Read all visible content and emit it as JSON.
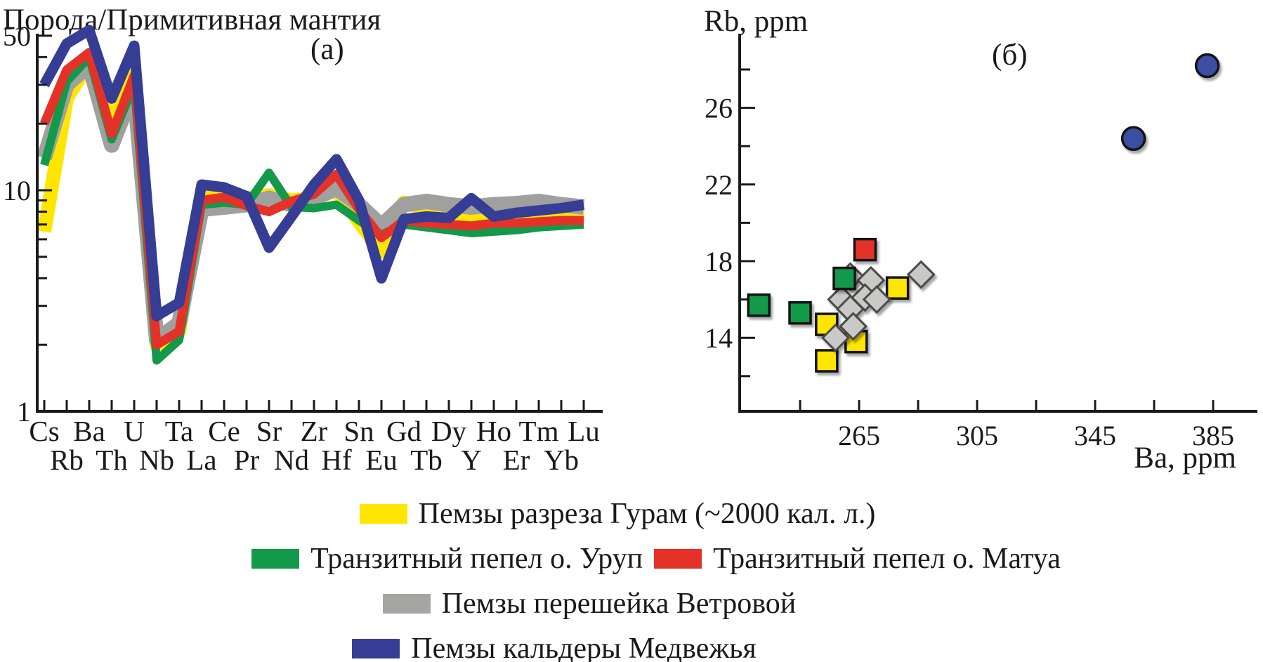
{
  "panel_a": {
    "label": "(а)",
    "y_axis_title": "Порода/Примитивная мантия"
  },
  "panel_b": {
    "label": "(б)",
    "ylabel": "Rb, ppm",
    "xlabel": "Ba, ppm"
  },
  "legend": {
    "rows": [
      [
        {
          "swatch_color": "#FFE500",
          "swatch_name": "yellow-swatch",
          "label": "Пемзы разреза Гурам (~2000 кал. л.)"
        }
      ],
      [
        {
          "swatch_color": "#12994A",
          "swatch_name": "green-swatch",
          "label": "Транзитный пепел о. Уруп"
        },
        {
          "swatch_color": "#E53228",
          "swatch_name": "red-swatch",
          "label": "Транзитный пепел о. Матуа"
        }
      ],
      [
        {
          "swatch_color": "#A5A5A4",
          "swatch_name": "gray-swatch",
          "label": "Пемзы перешейка Ветровой"
        }
      ],
      [
        {
          "swatch_color": "#353D94",
          "swatch_name": "blue-swatch",
          "label": "Пемзы кальдеры Медвежья"
        }
      ]
    ]
  },
  "chart_data": [
    {
      "type": "line",
      "panel": "(а)",
      "title": "Порода/Примитивная мантия",
      "y_scale": "log",
      "ylim": [
        1,
        55
      ],
      "y_ticks_labeled": [
        50,
        10,
        1
      ],
      "y_ticks_minor": [
        2,
        3,
        4,
        5,
        6,
        7,
        8,
        9,
        20,
        30,
        40
      ],
      "grid": false,
      "x_categories": [
        "Cs",
        "Rb",
        "Ba",
        "Th",
        "U",
        "Nb",
        "Ta",
        "La",
        "Ce",
        "Pr",
        "Sr",
        "Nd",
        "Zr",
        "Hf",
        "Sn",
        "Eu",
        "Gd",
        "Tb",
        "Dy",
        "Y",
        "Ho",
        "Er",
        "Tm",
        "Yb",
        "Lu"
      ],
      "series": [
        {
          "name": "Пемзы разреза Гурам (~2000 кал. л.)",
          "color": "#FFE500",
          "stroke_width": 20,
          "values": [
            6.5,
            26,
            38,
            20,
            34,
            2.0,
            2.3,
            9.3,
            9.5,
            9.2,
            9.5,
            9.0,
            9.2,
            10.0,
            7.2,
            5.3,
            8.8,
            8.2,
            7.9,
            7.7,
            7.9,
            7.7,
            7.9,
            7.7,
            7.5
          ]
        },
        {
          "name": "Пемзы перешейка Ветровой",
          "color": "#A0A09F",
          "stroke_width": 22,
          "values": [
            14,
            30,
            37,
            16,
            29,
            2.1,
            2.5,
            8.2,
            8.4,
            8.6,
            9.2,
            8.6,
            9.2,
            10.2,
            8.6,
            6.9,
            8.6,
            8.9,
            8.6,
            8.4,
            8.6,
            8.7,
            8.9,
            8.6,
            8.4
          ]
        },
        {
          "name": "Транзитный пепел о. Уруп",
          "color": "#12994A",
          "stroke_width": 12,
          "values": [
            13,
            31,
            40,
            17,
            30,
            1.7,
            2.1,
            8.6,
            8.8,
            8.6,
            12.0,
            8.4,
            8.3,
            8.6,
            7.3,
            6.3,
            7.0,
            6.8,
            6.6,
            6.4,
            6.5,
            6.6,
            6.8,
            6.9,
            7.0
          ]
        },
        {
          "name": "Транзитный пепел о. Матуа",
          "color": "#E53228",
          "stroke_width": 13,
          "values": [
            20,
            35,
            42,
            18,
            33,
            2.0,
            2.3,
            9.0,
            9.3,
            8.5,
            8.0,
            8.9,
            9.6,
            11.8,
            8.2,
            6.1,
            7.3,
            7.1,
            7.0,
            6.9,
            7.1,
            7.1,
            7.2,
            7.3,
            7.3
          ]
        },
        {
          "name": "Пемзы кальдеры Медвежья",
          "color": "#353D94",
          "stroke_width": 15,
          "values": [
            30,
            46,
            53,
            26,
            45,
            2.7,
            3.1,
            10.6,
            10.3,
            9.4,
            5.5,
            7.6,
            10.6,
            13.8,
            9.0,
            4.0,
            7.4,
            7.6,
            7.5,
            9.2,
            7.6,
            7.9,
            8.1,
            8.3,
            8.6
          ]
        }
      ]
    },
    {
      "type": "scatter",
      "panel": "(б)",
      "xlabel": "Ba, ppm",
      "ylabel": "Rb, ppm",
      "xlim": [
        225,
        400
      ],
      "ylim": [
        10,
        30
      ],
      "x_ticks_labeled": [
        265,
        305,
        345,
        385
      ],
      "x_ticks_minor": [
        245,
        285,
        325,
        365
      ],
      "y_ticks_labeled": [
        14,
        18,
        22,
        26
      ],
      "y_ticks_minor": [
        12,
        16,
        20,
        24,
        28
      ],
      "grid": false,
      "series": [
        {
          "name": "Пемзы разреза Гурам (~2000 кал. л.)",
          "marker": "square",
          "fill": "#FFE500",
          "stroke": "#141414",
          "points": [
            [
              254,
              14.7
            ],
            [
              264,
              13.8
            ],
            [
              254,
              12.8
            ],
            [
              278,
              16.6
            ]
          ]
        },
        {
          "name": "Пемзы перешейка Ветровой",
          "marker": "diamond",
          "fill": "#C9C9C8",
          "stroke": "#4a4a49",
          "points": [
            [
              262,
              17.2
            ],
            [
              269,
              17.0
            ],
            [
              286,
              17.3
            ],
            [
              259,
              16.0
            ],
            [
              262,
              15.5
            ],
            [
              267,
              16.1
            ],
            [
              271,
              16.0
            ],
            [
              263,
              14.6
            ],
            [
              257,
              14.0
            ]
          ]
        },
        {
          "name": "Транзитный пепел о. Уруп",
          "marker": "square",
          "fill": "#12994A",
          "stroke": "#141414",
          "points": [
            [
              231,
              15.7
            ],
            [
              245,
              15.3
            ],
            [
              260,
              17.1
            ]
          ]
        },
        {
          "name": "Транзитный пепел о. Матуа",
          "marker": "square",
          "fill": "#E53228",
          "stroke": "#141414",
          "points": [
            [
              267,
              18.6
            ]
          ]
        },
        {
          "name": "Пемзы кальдеры Медвежья",
          "marker": "circle",
          "fill": "#3B4EA3",
          "stroke": "#141414",
          "points": [
            [
              358,
              24.4
            ],
            [
              383,
              28.2
            ]
          ]
        }
      ]
    }
  ]
}
